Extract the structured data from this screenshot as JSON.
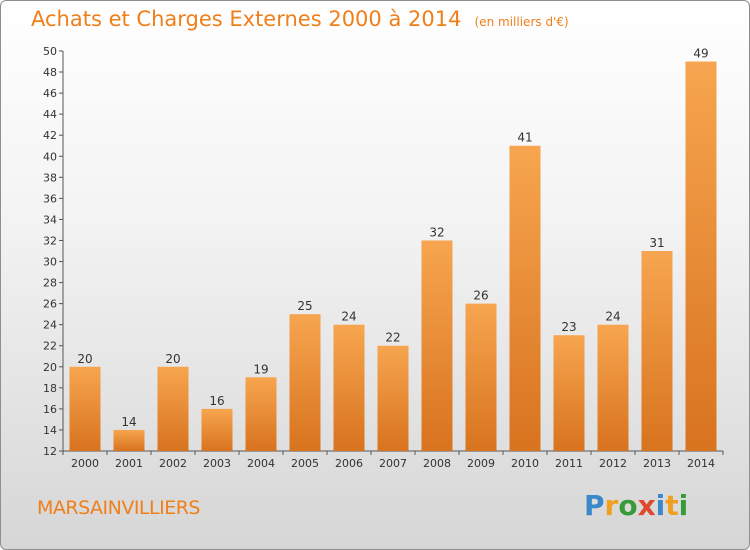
{
  "header": {
    "title": "Achats et Charges Externes 2000 à 2014",
    "unit": "(en milliers d'€)"
  },
  "footer": {
    "city": "MARSAINVILLIERS",
    "logo": {
      "letters": [
        "P",
        "r",
        "o",
        "x",
        "i",
        "t",
        "i"
      ],
      "colors": [
        "#3a88c9",
        "#f0a020",
        "#3a9a3a",
        "#e04a2a",
        "#3a88c9",
        "#f0a020",
        "#3a9a3a"
      ]
    }
  },
  "colors": {
    "title": "#f07f1a",
    "bar_top": "#f7a550",
    "bar_bottom": "#d8731e"
  },
  "chart_data": {
    "type": "bar",
    "categories": [
      "2000",
      "2001",
      "2002",
      "2003",
      "2004",
      "2005",
      "2006",
      "2007",
      "2008",
      "2009",
      "2010",
      "2011",
      "2012",
      "2013",
      "2014"
    ],
    "values": [
      20,
      14,
      20,
      16,
      19,
      25,
      24,
      22,
      32,
      26,
      41,
      23,
      24,
      31,
      49
    ],
    "title": "Achats et Charges Externes 2000 à 2014",
    "ylim": [
      12,
      50
    ],
    "yticks": [
      12,
      14,
      16,
      18,
      20,
      22,
      24,
      26,
      28,
      30,
      32,
      34,
      36,
      38,
      40,
      42,
      44,
      46,
      48,
      50
    ],
    "grid": false,
    "data_labels": true
  }
}
